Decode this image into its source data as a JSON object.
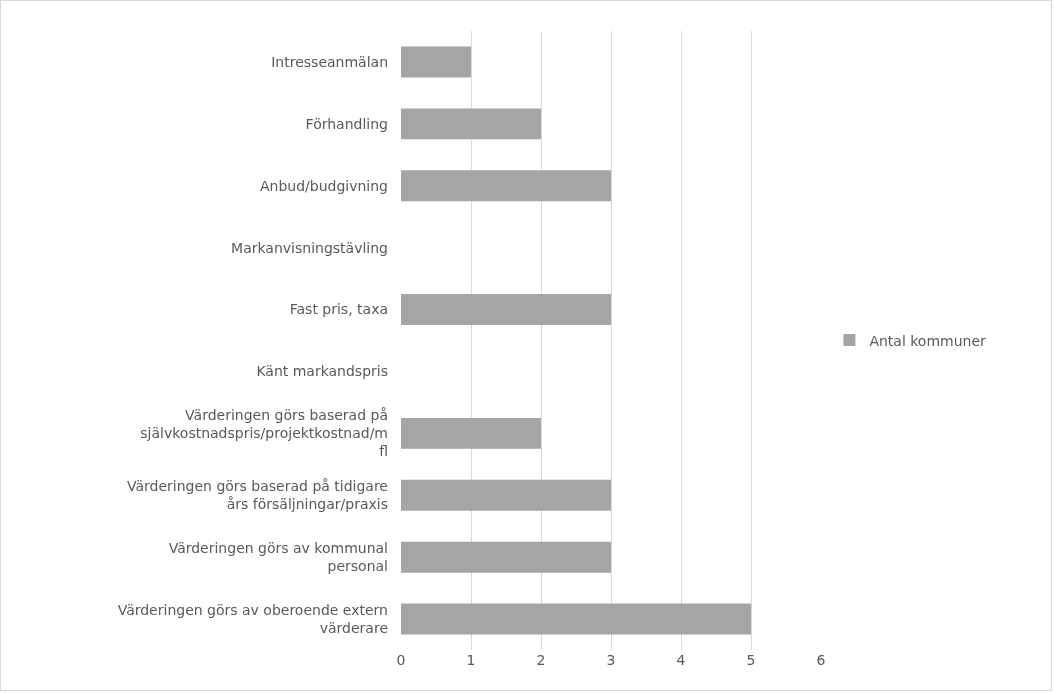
{
  "chart_data": {
    "type": "bar",
    "orientation": "horizontal",
    "categories": [
      "Intresseanmälan",
      "Förhandling",
      "Anbud/budgivning",
      "Markanvisningstävling",
      "Fast pris, taxa",
      "Känt markandspris",
      "Värderingen görs baserad på självkostnadspris/projektkostnad/m fl",
      "Värderingen görs baserad på tidigare års försäljningar/praxis",
      "Värderingen görs av kommunal personal",
      "Värderingen görs av oberoende extern värderare"
    ],
    "series": [
      {
        "name": "Antal kommuner",
        "color": "#a5a5a5",
        "values": [
          1,
          2,
          3,
          0,
          3,
          0,
          2,
          3,
          3,
          5
        ]
      }
    ],
    "xlim": [
      0,
      6
    ],
    "xticks": [
      0,
      1,
      2,
      3,
      4,
      5,
      6
    ],
    "grid": "x",
    "legend": "right"
  }
}
